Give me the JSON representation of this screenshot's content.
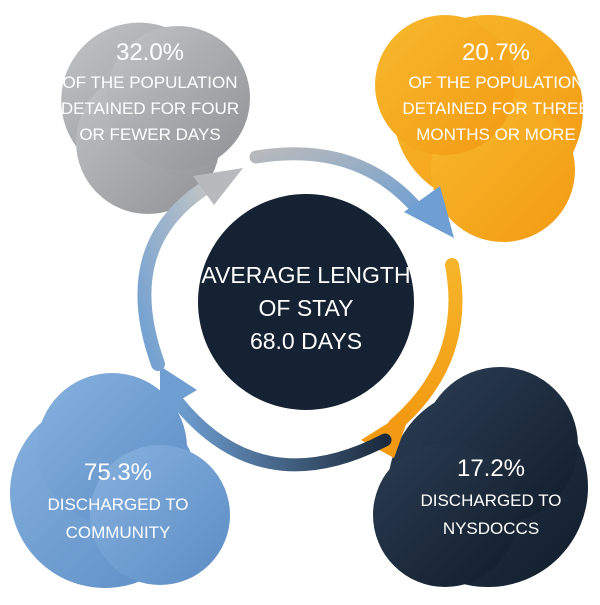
{
  "center": {
    "line1": "AVERAGE LENGTH",
    "line2": "OF STAY",
    "line3": "68.0 DAYS"
  },
  "stats": {
    "short_stay": {
      "percent": "32.0%",
      "line1": "OF THE POPULATION",
      "line2": "DETAINED FOR FOUR",
      "line3": "OR FEWER DAYS"
    },
    "long_stay": {
      "percent": "20.7%",
      "line1": "OF THE POPULATION",
      "line2": "DETAINED FOR THREE",
      "line3": "MONTHS OR MORE"
    },
    "community": {
      "percent": "75.3%",
      "line1": "DISCHARGED TO",
      "line2": "COMMUNITY"
    },
    "nysdoccs": {
      "percent": "17.2%",
      "line1": "DISCHARGED TO",
      "line2": "NYSDOCCS"
    }
  },
  "colors": {
    "gray": "#a7a9ac",
    "orange": "#f4a81d",
    "blue": "#6f9fd2",
    "navy": "#1b2a3d",
    "center": "#142233"
  }
}
